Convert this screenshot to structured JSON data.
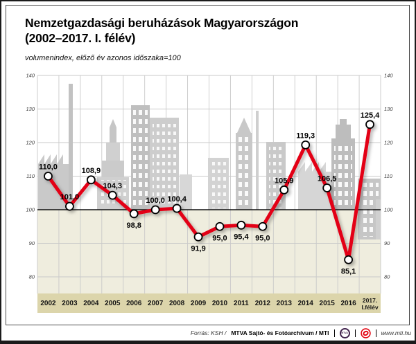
{
  "header": {
    "title_line1": "Nemzetgazdasági beruházások Magyarországon",
    "title_line2": "(2002–2017. I. félév)",
    "subtitle": "volumenindex, előző év azonos időszaka=100"
  },
  "chart_data": {
    "type": "line",
    "title": "Nemzetgazdasági beruházások Magyarországon (2002–2017. I. félév)",
    "subtitle": "volumenindex, előző év azonos időszaka=100",
    "categories": [
      "2002",
      "2003",
      "2004",
      "2005",
      "2006",
      "2007",
      "2008",
      "2009",
      "2010",
      "2011",
      "2012",
      "2013",
      "2014",
      "2015",
      "2016",
      "2017. I.félév"
    ],
    "values": [
      110.0,
      101.0,
      108.9,
      104.3,
      98.8,
      100.0,
      100.4,
      91.9,
      95.0,
      95.4,
      95.0,
      105.9,
      119.3,
      106.5,
      85.1,
      125.4
    ],
    "baseline": 100,
    "y_ticks": [
      140,
      130,
      120,
      110,
      100,
      90,
      80
    ],
    "ylim": [
      76,
      141
    ],
    "grid": true,
    "legend": "none",
    "decimal_separator": ",",
    "line_color": "#e30613",
    "marker_fill": "#ffffff",
    "marker_stroke": "#000000",
    "grid_color": "#c9c9c9",
    "below_area_color": "#efedde",
    "year_band_color": "#dcd5ab"
  },
  "footer": {
    "source_prefix": "Forrás: KSH /",
    "source_main": "MTVA Sajtó- és Fotóarchívum / MTI",
    "mtva_logo_label": "MTVA",
    "website": "www.mti.hu"
  }
}
